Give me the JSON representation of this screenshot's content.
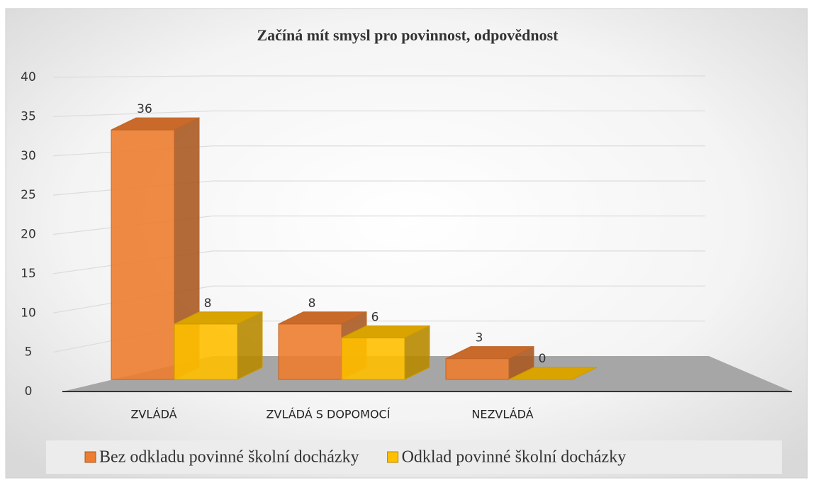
{
  "chart_data": {
    "type": "bar3d",
    "title": "Začíná mít smysl pro povinnost, odpovědnost",
    "categories": [
      "ZVLÁDÁ",
      "ZVLÁDÁ S DOPOMOCÍ",
      "NEZVLÁDÁ"
    ],
    "series": [
      {
        "name": "Bez odkladu povinné školní docházky",
        "color": "#ED7D31",
        "values": [
          36,
          8,
          3
        ]
      },
      {
        "name": "Odklad povinné školní docházky",
        "color": "#FFC000",
        "values": [
          8,
          6,
          0
        ]
      }
    ],
    "ylim": [
      0,
      40
    ],
    "yticks": [
      0,
      5,
      10,
      15,
      20,
      25,
      30,
      35,
      40
    ],
    "grid": true,
    "legend": "bottom"
  }
}
